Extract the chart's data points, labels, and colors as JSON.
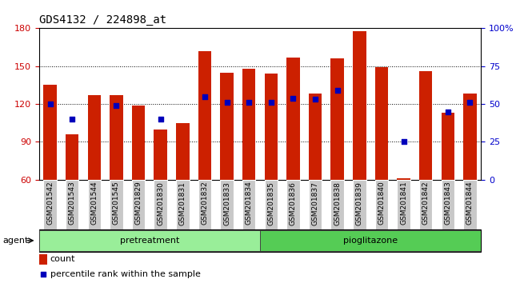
{
  "title": "GDS4132 / 224898_at",
  "samples": [
    "GSM201542",
    "GSM201543",
    "GSM201544",
    "GSM201545",
    "GSM201829",
    "GSM201830",
    "GSM201831",
    "GSM201832",
    "GSM201833",
    "GSM201834",
    "GSM201835",
    "GSM201836",
    "GSM201837",
    "GSM201838",
    "GSM201839",
    "GSM201840",
    "GSM201841",
    "GSM201842",
    "GSM201843",
    "GSM201844"
  ],
  "counts": [
    135,
    96,
    127,
    127,
    119,
    100,
    105,
    162,
    145,
    148,
    144,
    157,
    128,
    156,
    178,
    149,
    61,
    146,
    113,
    128
  ],
  "percentile_ranks_pct": [
    50,
    40,
    null,
    49,
    null,
    40,
    null,
    55,
    51,
    51,
    51,
    54,
    53,
    59,
    null,
    null,
    25,
    null,
    45,
    51
  ],
  "bar_color": "#CC2000",
  "dot_color": "#0000BB",
  "ylim_left": [
    60,
    180
  ],
  "ylim_right": [
    0,
    100
  ],
  "yticks_left": [
    60,
    90,
    120,
    150,
    180
  ],
  "yticks_right": [
    0,
    25,
    50,
    75,
    100
  ],
  "pretreatment_count": 10,
  "pioglitazone_count": 10,
  "group_label_left": "pretreatment",
  "group_label_right": "pioglitazone",
  "group_color_left": "#99EE99",
  "group_color_right": "#55CC55",
  "agent_label": "agent",
  "legend_count": "count",
  "legend_percentile": "percentile rank within the sample",
  "axis_color_left": "#CC0000",
  "axis_color_right": "#0000CC",
  "title_fontsize": 10,
  "bar_label_fontsize": 6.5,
  "group_fontsize": 8,
  "legend_fontsize": 8
}
